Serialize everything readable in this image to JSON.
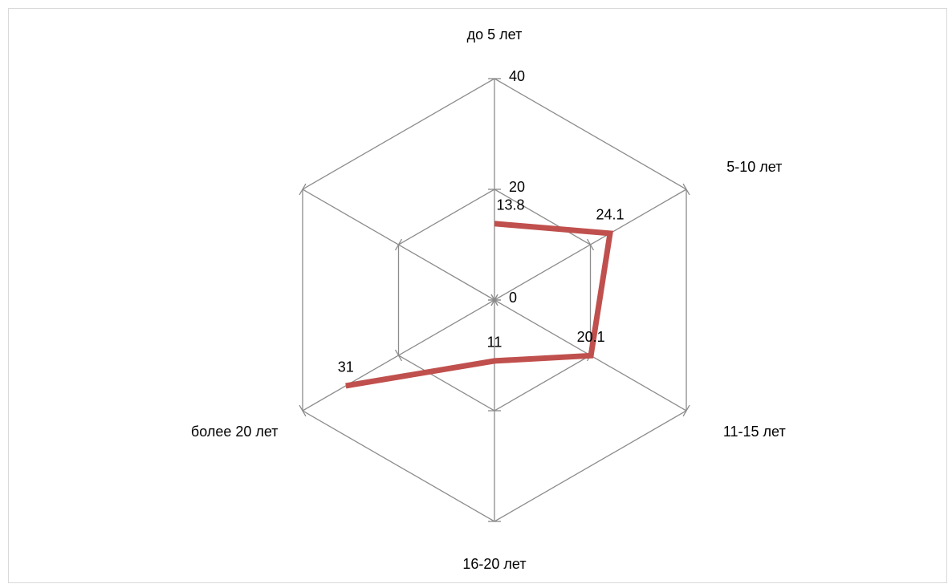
{
  "chart_data": {
    "type": "radar",
    "categories": [
      "до 5 лет",
      "5-10 лет",
      "11-15 лет",
      "16-20 лет",
      "более 20 лет",
      null
    ],
    "values": [
      13.8,
      24.1,
      20.1,
      11,
      31,
      null
    ],
    "color": "#c0504d",
    "ylim": [
      0,
      40
    ],
    "yticks": [
      0,
      20,
      40
    ],
    "grid": true
  }
}
